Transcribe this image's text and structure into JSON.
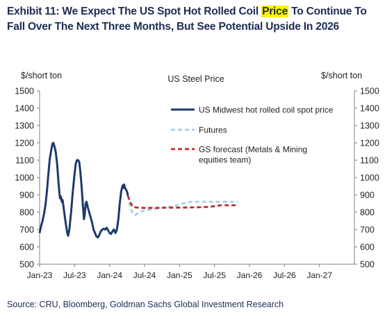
{
  "header": {
    "title_part1": "Exhibit 11: We Expect The US Spot Hot Rolled Coil ",
    "title_highlight": "Price",
    "title_part2": " To Continue To Fall Over The Next Three Months, But See Potential Upside In 2026"
  },
  "footer": {
    "source": "Source: CRU, Bloomberg, Goldman Sachs Global Investment Research"
  },
  "chart_data": {
    "type": "line",
    "title": "US Steel Price",
    "ylabel_left": "$/short ton",
    "ylabel_right": "$/short ton",
    "ylim": [
      500,
      1500
    ],
    "yticks": [
      500,
      600,
      700,
      800,
      900,
      1000,
      1100,
      1200,
      1300,
      1400,
      1500
    ],
    "xlim": [
      "2023-01",
      "2027-06"
    ],
    "xticks": [
      "Jan-23",
      "Jul-23",
      "Jan-24",
      "Jul-24",
      "Jan-25",
      "Jul-25",
      "Jan-26",
      "Jul-26",
      "Jan-27"
    ],
    "grid": false,
    "legend_position": "top-right",
    "colors": {
      "spot": "#1c3a6b",
      "futures": "#a9cdea",
      "forecast": "#c0282d"
    },
    "series": [
      {
        "name": "US Midwest hot rolled coil spot price",
        "style": "solid",
        "points": [
          [
            0,
            680
          ],
          [
            0.25,
            720
          ],
          [
            0.5,
            750
          ],
          [
            0.75,
            790
          ],
          [
            1.0,
            840
          ],
          [
            1.25,
            920
          ],
          [
            1.5,
            1020
          ],
          [
            1.75,
            1110
          ],
          [
            2.0,
            1160
          ],
          [
            2.2,
            1195
          ],
          [
            2.35,
            1200
          ],
          [
            2.5,
            1185
          ],
          [
            2.75,
            1150
          ],
          [
            3.0,
            1080
          ],
          [
            3.2,
            990
          ],
          [
            3.4,
            910
          ],
          [
            3.5,
            880
          ],
          [
            3.65,
            890
          ],
          [
            3.8,
            860
          ],
          [
            3.95,
            870
          ],
          [
            4.1,
            830
          ],
          [
            4.3,
            780
          ],
          [
            4.5,
            730
          ],
          [
            4.75,
            680
          ],
          [
            4.9,
            665
          ],
          [
            5.1,
            700
          ],
          [
            5.4,
            800
          ],
          [
            5.7,
            920
          ],
          [
            6.0,
            1020
          ],
          [
            6.2,
            1080
          ],
          [
            6.4,
            1100
          ],
          [
            6.6,
            1100
          ],
          [
            6.8,
            1090
          ],
          [
            7.0,
            1030
          ],
          [
            7.2,
            950
          ],
          [
            7.4,
            850
          ],
          [
            7.6,
            760
          ],
          [
            7.75,
            790
          ],
          [
            7.9,
            850
          ],
          [
            8.05,
            860
          ],
          [
            8.25,
            830
          ],
          [
            8.5,
            800
          ],
          [
            8.75,
            770
          ],
          [
            9.0,
            740
          ],
          [
            9.25,
            700
          ],
          [
            9.5,
            680
          ],
          [
            9.75,
            660
          ],
          [
            10.0,
            655
          ],
          [
            10.25,
            670
          ],
          [
            10.5,
            690
          ],
          [
            10.75,
            700
          ],
          [
            11.0,
            705
          ],
          [
            11.25,
            700
          ],
          [
            11.5,
            710
          ],
          [
            11.75,
            695
          ],
          [
            12.0,
            680
          ],
          [
            12.25,
            675
          ],
          [
            12.5,
            690
          ],
          [
            12.75,
            700
          ],
          [
            13.0,
            680
          ],
          [
            13.25,
            700
          ],
          [
            13.5,
            760
          ],
          [
            13.75,
            850
          ],
          [
            14.0,
            920
          ],
          [
            14.25,
            955
          ],
          [
            14.4,
            940
          ],
          [
            14.5,
            960
          ],
          [
            14.65,
            940
          ],
          [
            14.8,
            930
          ],
          [
            15.0,
            920
          ],
          [
            15.15,
            895
          ]
        ]
      },
      {
        "name": "Futures",
        "style": "dashed",
        "points": [
          [
            15.15,
            895
          ],
          [
            15.5,
            840
          ],
          [
            16.0,
            790
          ],
          [
            16.5,
            785
          ],
          [
            17.0,
            800
          ],
          [
            18.0,
            810
          ],
          [
            19.0,
            815
          ],
          [
            20.0,
            820
          ],
          [
            21.0,
            825
          ],
          [
            22.0,
            830
          ],
          [
            23.0,
            835
          ],
          [
            24.0,
            845
          ],
          [
            25.0,
            855
          ],
          [
            26.0,
            860
          ],
          [
            27.0,
            860
          ],
          [
            28.0,
            860
          ],
          [
            29.0,
            860
          ],
          [
            30.0,
            860
          ],
          [
            31.0,
            860
          ],
          [
            32.0,
            860
          ],
          [
            33.0,
            860
          ],
          [
            34.0,
            860
          ]
        ]
      },
      {
        "name": "GS forecast (Metals & Mining equities team)",
        "style": "dashed",
        "points": [
          [
            15.15,
            895
          ],
          [
            15.5,
            860
          ],
          [
            16.0,
            830
          ],
          [
            16.5,
            828
          ],
          [
            17.0,
            826
          ],
          [
            18.0,
            825
          ],
          [
            19.0,
            825
          ],
          [
            20.0,
            825
          ],
          [
            21.0,
            826
          ],
          [
            22.0,
            826
          ],
          [
            23.0,
            826
          ],
          [
            24.0,
            827
          ],
          [
            25.0,
            827
          ],
          [
            26.0,
            828
          ],
          [
            27.0,
            828
          ],
          [
            28.0,
            830
          ],
          [
            29.0,
            830
          ],
          [
            30.0,
            835
          ],
          [
            31.0,
            840
          ],
          [
            32.0,
            840
          ],
          [
            33.0,
            840
          ],
          [
            34.0,
            840
          ]
        ]
      }
    ]
  }
}
